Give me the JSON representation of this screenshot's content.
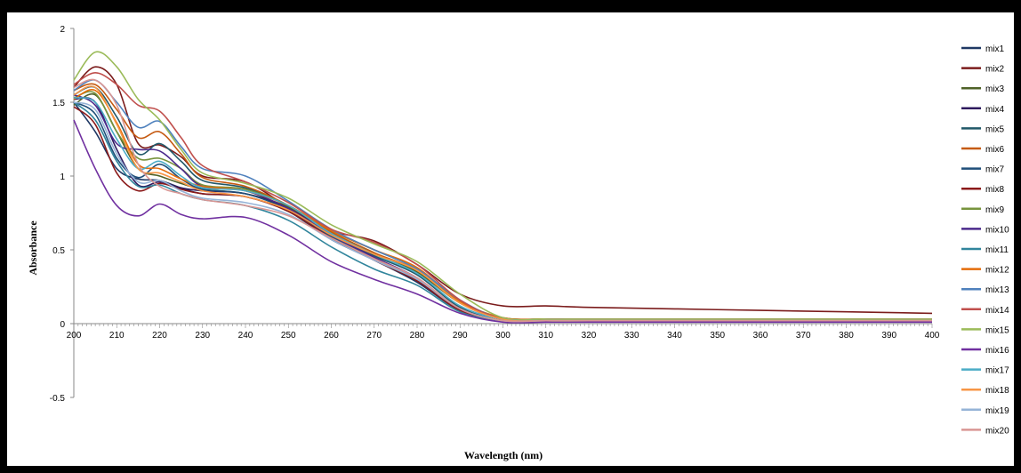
{
  "chart_data": {
    "type": "line",
    "title": "",
    "xlabel": "Wavelength (nm)",
    "ylabel": "Absorbance",
    "xlim": [
      200,
      400
    ],
    "ylim": [
      -0.5,
      2
    ],
    "x_ticks": [
      200,
      210,
      220,
      230,
      240,
      250,
      260,
      270,
      280,
      290,
      300,
      310,
      320,
      330,
      340,
      350,
      360,
      370,
      380,
      390,
      400
    ],
    "y_ticks": [
      -0.5,
      0,
      0.5,
      1,
      1.5,
      2
    ],
    "y_tick_labels": [
      "-0.5",
      "0",
      "0.5",
      "1",
      "1.5",
      "2"
    ],
    "grid": false,
    "legend_position": "right",
    "x": [
      200,
      205,
      210,
      215,
      220,
      225,
      230,
      240,
      250,
      260,
      270,
      280,
      290,
      300,
      310,
      320,
      340,
      360,
      380,
      400
    ],
    "series": [
      {
        "name": "mix1",
        "color": "#1f3864",
        "values": [
          1.5,
          1.3,
          1.05,
          0.98,
          0.97,
          0.92,
          0.88,
          0.86,
          0.76,
          0.57,
          0.43,
          0.28,
          0.09,
          0.02,
          0.02,
          0.02,
          0.02,
          0.02,
          0.02,
          0.02
        ]
      },
      {
        "name": "mix2",
        "color": "#7b1c1c",
        "values": [
          1.6,
          1.74,
          1.62,
          1.22,
          1.21,
          1.13,
          1.0,
          0.96,
          0.79,
          0.63,
          0.56,
          0.4,
          0.2,
          0.12,
          0.12,
          0.11,
          0.1,
          0.09,
          0.08,
          0.07
        ]
      },
      {
        "name": "mix3",
        "color": "#4f6228",
        "values": [
          1.48,
          1.55,
          1.3,
          1.05,
          1.0,
          0.95,
          0.91,
          0.88,
          0.79,
          0.62,
          0.48,
          0.35,
          0.14,
          0.04,
          0.03,
          0.03,
          0.03,
          0.03,
          0.03,
          0.03
        ]
      },
      {
        "name": "mix4",
        "color": "#2e1a5e",
        "values": [
          1.52,
          1.5,
          1.18,
          0.94,
          0.96,
          0.92,
          0.9,
          0.88,
          0.78,
          0.6,
          0.45,
          0.3,
          0.1,
          0.02,
          0.02,
          0.02,
          0.02,
          0.02,
          0.02,
          0.02
        ]
      },
      {
        "name": "mix5",
        "color": "#215868",
        "values": [
          1.55,
          1.6,
          1.4,
          1.15,
          1.22,
          1.1,
          0.97,
          0.92,
          0.8,
          0.61,
          0.46,
          0.33,
          0.11,
          0.02,
          0.02,
          0.02,
          0.02,
          0.02,
          0.02,
          0.02
        ]
      },
      {
        "name": "mix6",
        "color": "#c55a11",
        "values": [
          1.58,
          1.62,
          1.45,
          1.26,
          1.3,
          1.15,
          0.99,
          0.93,
          0.8,
          0.62,
          0.48,
          0.36,
          0.14,
          0.03,
          0.03,
          0.03,
          0.03,
          0.03,
          0.03,
          0.03
        ]
      },
      {
        "name": "mix7",
        "color": "#1f4e79",
        "values": [
          1.5,
          1.42,
          1.12,
          0.99,
          1.08,
          0.98,
          0.91,
          0.88,
          0.77,
          0.59,
          0.44,
          0.3,
          0.09,
          0.02,
          0.02,
          0.02,
          0.02,
          0.02,
          0.02,
          0.02
        ]
      },
      {
        "name": "mix8",
        "color": "#8b1a1a",
        "values": [
          1.47,
          1.35,
          1.02,
          0.9,
          0.95,
          0.91,
          0.88,
          0.86,
          0.76,
          0.58,
          0.43,
          0.29,
          0.09,
          0.02,
          0.02,
          0.02,
          0.02,
          0.02,
          0.02,
          0.02
        ]
      },
      {
        "name": "mix9",
        "color": "#77933c",
        "values": [
          1.53,
          1.56,
          1.3,
          1.12,
          1.12,
          1.05,
          0.94,
          0.91,
          0.8,
          0.63,
          0.5,
          0.37,
          0.15,
          0.04,
          0.03,
          0.03,
          0.03,
          0.03,
          0.03,
          0.03
        ]
      },
      {
        "name": "mix10",
        "color": "#4b2a8c",
        "values": [
          1.55,
          1.48,
          1.22,
          1.18,
          1.17,
          1.05,
          0.93,
          0.9,
          0.78,
          0.6,
          0.45,
          0.31,
          0.1,
          0.02,
          0.02,
          0.02,
          0.02,
          0.02,
          0.02,
          0.02
        ]
      },
      {
        "name": "mix11",
        "color": "#31859c",
        "values": [
          1.5,
          1.38,
          1.1,
          0.93,
          0.94,
          0.88,
          0.84,
          0.8,
          0.7,
          0.52,
          0.37,
          0.26,
          0.08,
          0.02,
          0.02,
          0.02,
          0.02,
          0.02,
          0.02,
          0.02
        ]
      },
      {
        "name": "mix12",
        "color": "#e46c0a",
        "values": [
          1.52,
          1.58,
          1.36,
          1.08,
          1.05,
          0.98,
          0.93,
          0.9,
          0.8,
          0.63,
          0.5,
          0.38,
          0.15,
          0.04,
          0.03,
          0.03,
          0.03,
          0.03,
          0.03,
          0.03
        ]
      },
      {
        "name": "mix13",
        "color": "#4f81bd",
        "values": [
          1.58,
          1.65,
          1.5,
          1.33,
          1.37,
          1.2,
          1.05,
          1.0,
          0.83,
          0.64,
          0.5,
          0.37,
          0.16,
          0.03,
          0.03,
          0.03,
          0.03,
          0.03,
          0.03,
          0.03
        ]
      },
      {
        "name": "mix14",
        "color": "#c0504d",
        "values": [
          1.62,
          1.7,
          1.62,
          1.48,
          1.44,
          1.26,
          1.07,
          0.96,
          0.82,
          0.64,
          0.55,
          0.4,
          0.16,
          0.03,
          0.03,
          0.03,
          0.03,
          0.03,
          0.03,
          0.03
        ]
      },
      {
        "name": "mix15",
        "color": "#9bbb59",
        "values": [
          1.65,
          1.84,
          1.74,
          1.52,
          1.38,
          1.18,
          1.02,
          0.95,
          0.85,
          0.67,
          0.54,
          0.42,
          0.2,
          0.04,
          0.03,
          0.03,
          0.03,
          0.03,
          0.03,
          0.03
        ]
      },
      {
        "name": "mix16",
        "color": "#7030a0",
        "values": [
          1.38,
          1.05,
          0.8,
          0.73,
          0.81,
          0.74,
          0.71,
          0.72,
          0.6,
          0.42,
          0.3,
          0.2,
          0.07,
          0.01,
          0.01,
          0.01,
          0.01,
          0.01,
          0.01,
          0.01
        ]
      },
      {
        "name": "mix17",
        "color": "#4bacc6",
        "values": [
          1.53,
          1.5,
          1.25,
          1.05,
          1.1,
          1.0,
          0.92,
          0.9,
          0.8,
          0.61,
          0.47,
          0.34,
          0.12,
          0.03,
          0.02,
          0.02,
          0.02,
          0.02,
          0.02,
          0.02
        ]
      },
      {
        "name": "mix18",
        "color": "#f79646",
        "values": [
          1.55,
          1.6,
          1.35,
          1.05,
          1.02,
          0.96,
          0.9,
          0.86,
          0.77,
          0.6,
          0.47,
          0.36,
          0.14,
          0.03,
          0.02,
          0.02,
          0.02,
          0.02,
          0.02,
          0.02
        ]
      },
      {
        "name": "mix19",
        "color": "#95b3d7",
        "values": [
          1.5,
          1.45,
          1.15,
          0.96,
          0.97,
          0.9,
          0.85,
          0.82,
          0.74,
          0.57,
          0.43,
          0.3,
          0.1,
          0.02,
          0.02,
          0.02,
          0.02,
          0.02,
          0.02,
          0.02
        ]
      },
      {
        "name": "mix20",
        "color": "#d99694",
        "values": [
          1.6,
          1.65,
          1.48,
          1.08,
          0.93,
          0.88,
          0.84,
          0.8,
          0.73,
          0.58,
          0.44,
          0.31,
          0.1,
          0.02,
          0.02,
          0.02,
          0.02,
          0.02,
          0.02,
          0.02
        ]
      }
    ]
  }
}
